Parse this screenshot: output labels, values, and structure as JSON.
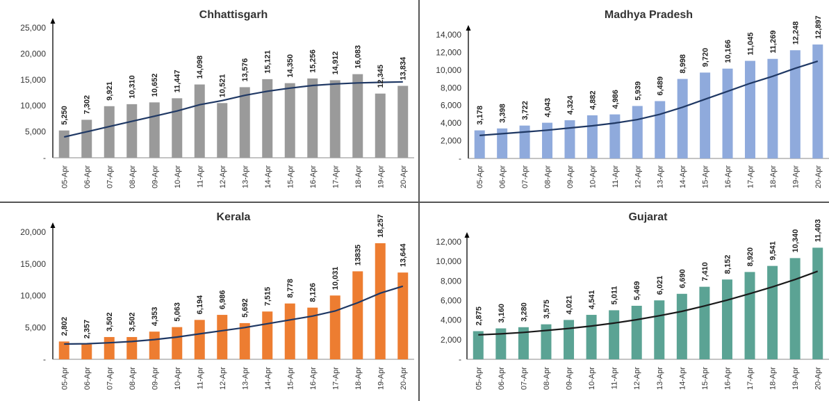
{
  "chart_data": [
    {
      "type": "bar",
      "title": "Chhattisgarh",
      "categories": [
        "05-Apr",
        "06-Apr",
        "07-Apr",
        "08-Apr",
        "09-Apr",
        "10-Apr",
        "11-Apr",
        "12-Apr",
        "13-Apr",
        "14-Apr",
        "15-Apr",
        "16-Apr",
        "17-Apr",
        "18-Apr",
        "19-Apr",
        "20-Apr"
      ],
      "values": [
        5250,
        7302,
        9921,
        10310,
        10652,
        11447,
        14098,
        10521,
        13576,
        15121,
        14350,
        15256,
        14912,
        16083,
        12345,
        13834
      ],
      "value_labels": [
        "5,250",
        "7,302",
        "9,921",
        "10,310",
        "10,652",
        "11,447",
        "14,098",
        "10,521",
        "13,576",
        "15,121",
        "14,350",
        "15,256",
        "14,912",
        "16,083",
        "12,345",
        "13,834"
      ],
      "trend": [
        4000,
        5000,
        6000,
        7000,
        8000,
        9000,
        10200,
        11000,
        12000,
        12800,
        13400,
        13900,
        14200,
        14400,
        14500,
        14600
      ],
      "ylim": [
        0,
        25000
      ],
      "yticks": [
        0,
        5000,
        10000,
        15000,
        20000,
        25000
      ],
      "ytick_labels": [
        "-",
        "5,000",
        "10,000",
        "15,000",
        "20,000",
        "25,000"
      ],
      "bar_color": "#9a9a9a",
      "line_color": "#1f3864",
      "xlabel": "",
      "ylabel": "",
      "grid": false
    },
    {
      "type": "bar",
      "title": "Madhya Pradesh",
      "categories": [
        "05-Apr",
        "06-Apr",
        "07-Apr",
        "08-Apr",
        "09-Apr",
        "10-Apr",
        "11-Apr",
        "12-Apr",
        "13-Apr",
        "14-Apr",
        "15-Apr",
        "16-Apr",
        "17-Apr",
        "18-Apr",
        "19-Apr",
        "20-Apr"
      ],
      "values": [
        3178,
        3398,
        3722,
        4043,
        4324,
        4882,
        4986,
        5939,
        6489,
        8998,
        9720,
        10166,
        11045,
        11269,
        12248,
        12897
      ],
      "value_labels": [
        "3,178",
        "3,398",
        "3,722",
        "4,043",
        "4,324",
        "4,882",
        "4,986",
        "5,939",
        "6,489",
        "8,998",
        "9,720",
        "10,166",
        "11,045",
        "11,269",
        "12,248",
        "12,897"
      ],
      "trend": [
        2600,
        2800,
        3000,
        3200,
        3450,
        3700,
        4000,
        4400,
        5000,
        5800,
        6700,
        7600,
        8500,
        9300,
        10200,
        11000
      ],
      "ylim": [
        0,
        14000
      ],
      "yticks": [
        0,
        2000,
        4000,
        6000,
        8000,
        10000,
        12000,
        14000
      ],
      "ytick_labels": [
        "-",
        "2,000",
        "4,000",
        "6,000",
        "8,000",
        "10,000",
        "12,000",
        "14,000"
      ],
      "bar_color": "#8faadc",
      "line_color": "#1f3864",
      "xlabel": "",
      "ylabel": "",
      "grid": false
    },
    {
      "type": "bar",
      "title": "Kerala",
      "categories": [
        "05-Apr",
        "06-Apr",
        "07-Apr",
        "08-Apr",
        "09-Apr",
        "10-Apr",
        "11-Apr",
        "12-Apr",
        "13-Apr",
        "14-Apr",
        "15-Apr",
        "16-Apr",
        "17-Apr",
        "18-Apr",
        "19-Apr",
        "20-Apr"
      ],
      "values": [
        2802,
        2357,
        3502,
        3502,
        4353,
        5063,
        6194,
        6986,
        5692,
        7515,
        8778,
        8126,
        10031,
        13835,
        18257,
        13644
      ],
      "value_labels": [
        "2,802",
        "2,357",
        "3,502",
        "3,502",
        "4,353",
        "5,063",
        "6,194",
        "6,986",
        "5,692",
        "7,515",
        "8,778",
        "8,126",
        "10,031",
        "13835",
        "18,257",
        "13,644"
      ],
      "trend": [
        2400,
        2450,
        2600,
        2800,
        3100,
        3500,
        4000,
        4500,
        5000,
        5600,
        6200,
        6800,
        7600,
        8900,
        10400,
        11500
      ],
      "ylim": [
        0,
        20000
      ],
      "yticks": [
        0,
        5000,
        10000,
        15000,
        20000
      ],
      "ytick_labels": [
        "-",
        "5,000",
        "10,000",
        "15,000",
        "20,000"
      ],
      "bar_color": "#ed7d31",
      "line_color": "#1f3864",
      "xlabel": "",
      "ylabel": "",
      "grid": false
    },
    {
      "type": "bar",
      "title": "Gujarat",
      "categories": [
        "05-Apr",
        "06-Apr",
        "07-Apr",
        "08-Apr",
        "09-Apr",
        "10-Apr",
        "11-Apr",
        "12-Apr",
        "13-Apr",
        "14-Apr",
        "15-Apr",
        "16-Apr",
        "17-Apr",
        "18-Apr",
        "19-Apr",
        "20-Apr"
      ],
      "values": [
        2875,
        3160,
        3280,
        3575,
        4021,
        4541,
        5011,
        5469,
        6021,
        6690,
        7410,
        8152,
        8920,
        9541,
        10340,
        11403
      ],
      "value_labels": [
        "2,875",
        "3,160",
        "3,280",
        "3,575",
        "4,021",
        "4,541",
        "5,011",
        "5,469",
        "6,021",
        "6,690",
        "7,410",
        "8,152",
        "8,920",
        "9,541",
        "10,340",
        "11,403"
      ],
      "trend": [
        2500,
        2600,
        2750,
        2950,
        3150,
        3400,
        3700,
        4050,
        4450,
        4900,
        5450,
        6050,
        6700,
        7400,
        8150,
        9000
      ],
      "ylim": [
        0,
        12000
      ],
      "yticks": [
        0,
        2000,
        4000,
        6000,
        8000,
        10000,
        12000
      ],
      "ytick_labels": [
        "-",
        "2,000",
        "4,000",
        "6,000",
        "8,000",
        "10,000",
        "12,000"
      ],
      "bar_color": "#5ba394",
      "line_color": "#1a1a1a",
      "xlabel": "",
      "ylabel": "",
      "grid": false
    }
  ]
}
